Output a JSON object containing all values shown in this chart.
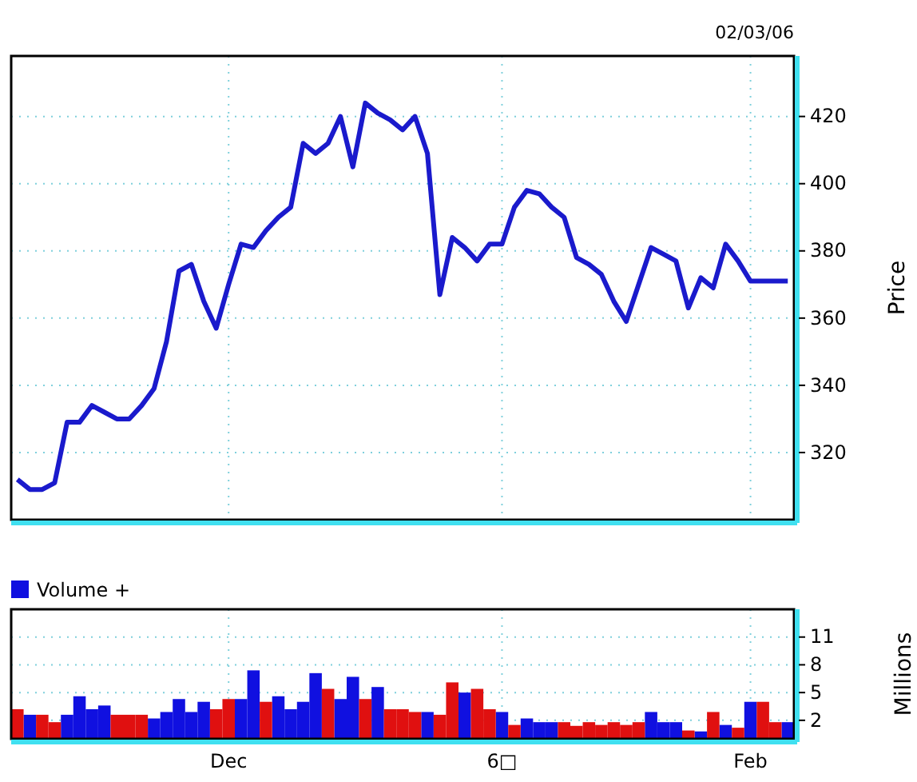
{
  "chart_data": [
    {
      "type": "line",
      "annotations": [
        "02/03/06"
      ],
      "ylabel": "Price",
      "categories": [
        null,
        null,
        null,
        null,
        null,
        null,
        null,
        null,
        null,
        null,
        null,
        null,
        null,
        null,
        null,
        null,
        null,
        null,
        null,
        null,
        null,
        null,
        null,
        null,
        null,
        null,
        null,
        null,
        null,
        null,
        null,
        null,
        null,
        null,
        null,
        null,
        null,
        null,
        null,
        null,
        null,
        null,
        null,
        null,
        null,
        null,
        null,
        null,
        null,
        null,
        null,
        null,
        null,
        null,
        null,
        null,
        null,
        null,
        null,
        null,
        null,
        null,
        null
      ],
      "series": [
        {
          "color": "#1a1acc",
          "values": [
            312,
            309,
            309,
            311,
            329,
            329,
            334,
            332,
            330,
            330,
            334,
            339,
            353,
            374,
            376,
            365,
            357,
            370,
            382,
            381,
            386,
            390,
            393,
            412,
            409,
            412,
            420,
            405,
            424,
            421,
            419,
            416,
            420,
            409,
            367,
            384,
            381,
            377,
            382,
            382,
            393,
            398,
            397,
            393,
            390,
            378,
            376,
            373,
            365,
            359,
            370,
            381,
            379,
            377,
            363,
            372,
            369,
            382,
            377,
            371,
            371,
            371,
            371
          ]
        }
      ],
      "ylim": [
        300,
        438
      ],
      "yticks": [
        320,
        340,
        360,
        380,
        400,
        420
      ],
      "grid": true,
      "tick_labels": "y",
      "marker": "none",
      "line_style": "solid"
    },
    {
      "type": "bar",
      "ylabel": "Millions",
      "legend": "top left",
      "categories": [
        null,
        null,
        null,
        null,
        null,
        null,
        null,
        null,
        null,
        null,
        null,
        null,
        null,
        null,
        null,
        null,
        null,
        "Dec",
        null,
        null,
        null,
        null,
        null,
        null,
        null,
        null,
        null,
        null,
        null,
        null,
        null,
        null,
        null,
        null,
        null,
        null,
        null,
        null,
        null,
        "6□",
        null,
        null,
        null,
        null,
        null,
        null,
        null,
        null,
        null,
        null,
        null,
        null,
        null,
        null,
        null,
        null,
        null,
        null,
        null,
        "Feb",
        null,
        null,
        null
      ],
      "series": [
        {
          "name": "Volume +",
          "color": "#1010e0",
          "values": [
            null,
            2.6,
            null,
            null,
            2.6,
            4.6,
            3.2,
            3.6,
            null,
            null,
            null,
            2.2,
            2.9,
            4.3,
            2.9,
            4.0,
            null,
            null,
            4.3,
            7.4,
            null,
            4.6,
            3.2,
            4.0,
            7.1,
            null,
            4.3,
            6.7,
            null,
            5.6,
            null,
            null,
            null,
            2.9,
            null,
            null,
            5.0,
            null,
            null,
            2.9,
            null,
            2.2,
            1.8,
            1.8,
            null,
            null,
            null,
            null,
            null,
            null,
            null,
            2.9,
            1.8,
            1.8,
            null,
            0.8,
            null,
            1.5,
            null,
            4.0,
            null,
            null,
            1.8
          ]
        },
        {
          "color": "#e01010",
          "values": [
            3.2,
            null,
            2.6,
            1.8,
            null,
            null,
            null,
            null,
            2.6,
            2.6,
            2.6,
            null,
            null,
            null,
            null,
            null,
            3.2,
            4.3,
            null,
            null,
            4.0,
            null,
            null,
            null,
            null,
            5.4,
            null,
            null,
            4.3,
            null,
            3.2,
            3.2,
            2.9,
            null,
            2.6,
            6.1,
            null,
            5.4,
            3.2,
            null,
            1.5,
            null,
            null,
            null,
            1.8,
            1.4,
            1.8,
            1.5,
            1.8,
            1.5,
            1.8,
            null,
            null,
            null,
            0.9,
            null,
            2.9,
            null,
            1.2,
            null,
            4.0,
            1.8,
            null
          ]
        }
      ],
      "ylim": [
        0,
        14
      ],
      "yticks": [
        2,
        5,
        8,
        11
      ],
      "grid": true
    }
  ]
}
